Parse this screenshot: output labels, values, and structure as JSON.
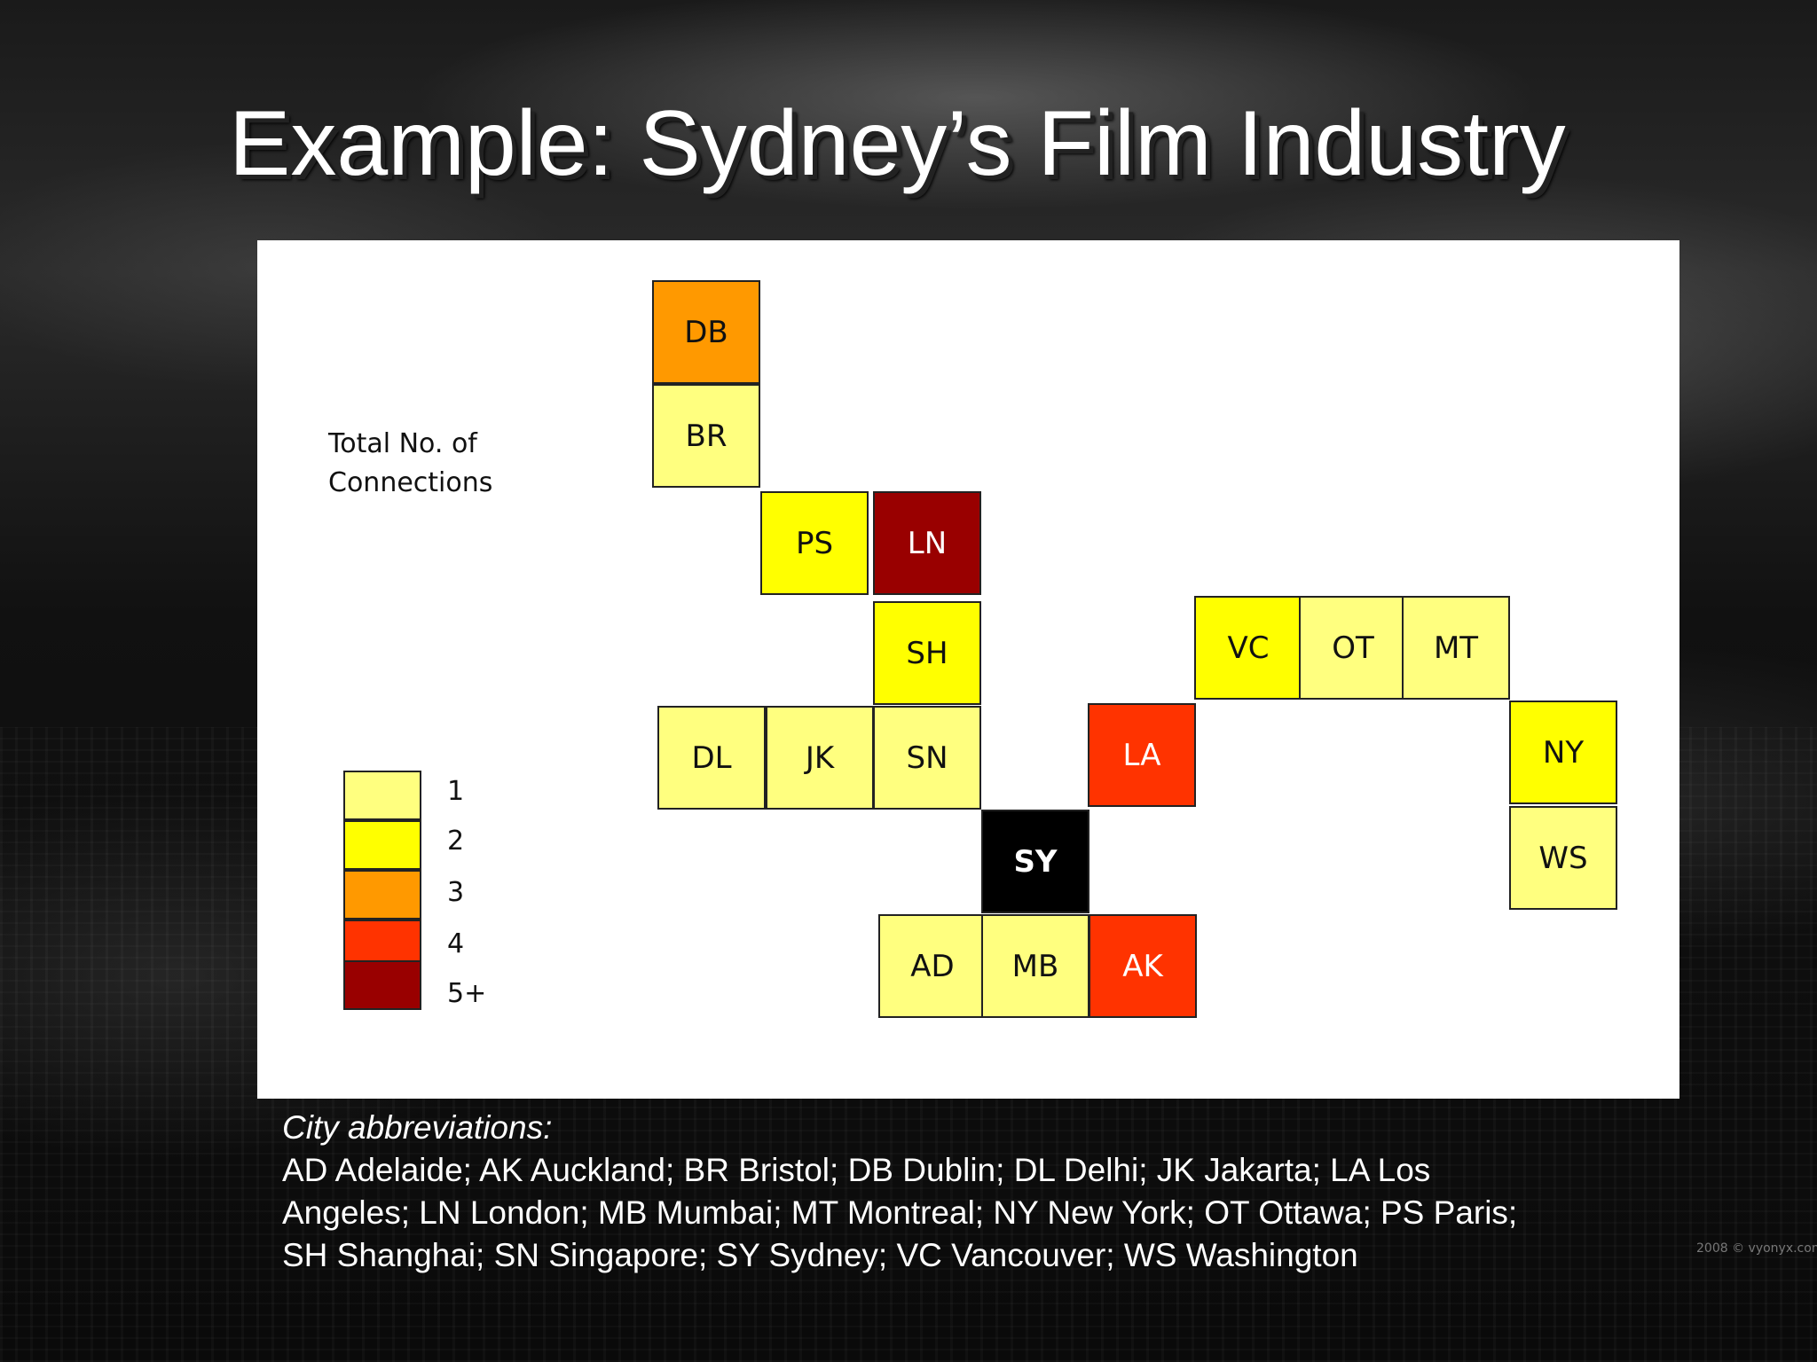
{
  "slide": {
    "title": "Example: Sydney’s Film Industry",
    "watermark": "2008 © vyonyx.com"
  },
  "legend": {
    "title_line1": "Total No. of",
    "title_line2": "Connections",
    "levels": [
      {
        "label": "1",
        "color": "#FFFF7F"
      },
      {
        "label": "2",
        "color": "#FFFF00"
      },
      {
        "label": "3",
        "color": "#FF9900"
      },
      {
        "label": "4",
        "color": "#FF3300"
      },
      {
        "label": "5+",
        "color": "#990000"
      }
    ]
  },
  "hub": {
    "code": "SY",
    "color": "#000000"
  },
  "cities": [
    {
      "code": "DB",
      "level": 3
    },
    {
      "code": "BR",
      "level": 1
    },
    {
      "code": "PS",
      "level": 2
    },
    {
      "code": "LN",
      "level": 5
    },
    {
      "code": "SH",
      "level": 2
    },
    {
      "code": "DL",
      "level": 1
    },
    {
      "code": "JK",
      "level": 1
    },
    {
      "code": "SN",
      "level": 1
    },
    {
      "code": "LA",
      "level": 4
    },
    {
      "code": "VC",
      "level": 2
    },
    {
      "code": "OT",
      "level": 1
    },
    {
      "code": "MT",
      "level": 1
    },
    {
      "code": "NY",
      "level": 2
    },
    {
      "code": "WS",
      "level": 1
    },
    {
      "code": "AD",
      "level": 1
    },
    {
      "code": "MB",
      "level": 1
    },
    {
      "code": "AK",
      "level": 4
    }
  ],
  "caption": {
    "heading": "City abbreviations:",
    "line1": "AD Adelaide; AK Auckland; BR  Bristol; DB Dublin; DL Delhi; JK Jakarta; LA Los",
    "line2": "Angeles; LN London; MB Mumbai; MT Montreal; NY New York; OT Ottawa; PS Paris;",
    "line3": "SH Shanghai; SN Singapore; SY Sydney; VC Vancouver; WS Washington"
  }
}
